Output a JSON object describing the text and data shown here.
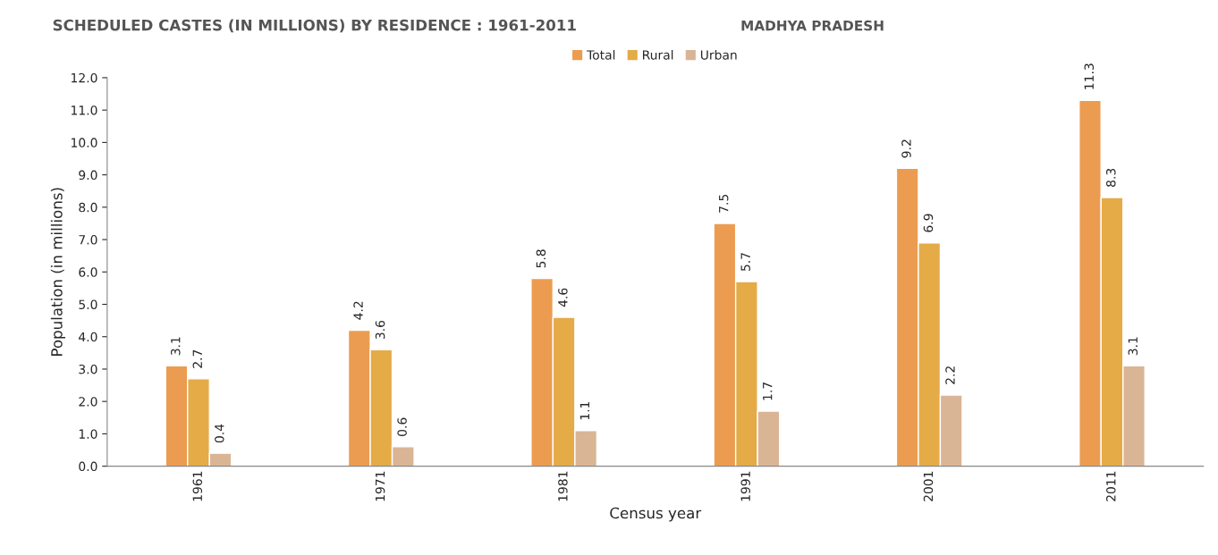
{
  "chart_data": {
    "type": "bar",
    "title": "SCHEDULED CASTES (IN MILLIONS) BY RESIDENCE : 1961-2011",
    "subtitle": "MADHYA PRADESH",
    "xlabel": "Census year",
    "ylabel": "Population (in millions)",
    "categories": [
      "1961",
      "1971",
      "1981",
      "1991",
      "2001",
      "2011"
    ],
    "series": [
      {
        "name": "Total",
        "color": "#ec9c50",
        "values": [
          3.1,
          4.2,
          5.8,
          7.5,
          9.2,
          11.3
        ]
      },
      {
        "name": "Rural",
        "color": "#e5ab47",
        "values": [
          2.7,
          3.6,
          4.6,
          5.7,
          6.9,
          8.3
        ]
      },
      {
        "name": "Urban",
        "color": "#d9b595",
        "values": [
          0.4,
          0.6,
          1.1,
          1.7,
          2.2,
          3.1
        ]
      }
    ],
    "ylim": [
      0,
      12
    ],
    "yticks": [
      {
        "value": 0,
        "label": "0.0"
      },
      {
        "value": 1,
        "label": "1.0"
      },
      {
        "value": 2,
        "label": "2.0"
      },
      {
        "value": 3,
        "label": "3.0"
      },
      {
        "value": 4,
        "label": "4.0"
      },
      {
        "value": 5,
        "label": "5.0"
      },
      {
        "value": 6,
        "label": "6.0"
      },
      {
        "value": 7,
        "label": "7.0"
      },
      {
        "value": 8,
        "label": "8.0"
      },
      {
        "value": 9,
        "label": "9.0"
      },
      {
        "value": 10,
        "label": "10.0"
      },
      {
        "value": 11,
        "label": "11.0"
      },
      {
        "value": 12,
        "label": "12.0"
      }
    ],
    "data_labels": true,
    "grid": false,
    "legend": "top"
  }
}
